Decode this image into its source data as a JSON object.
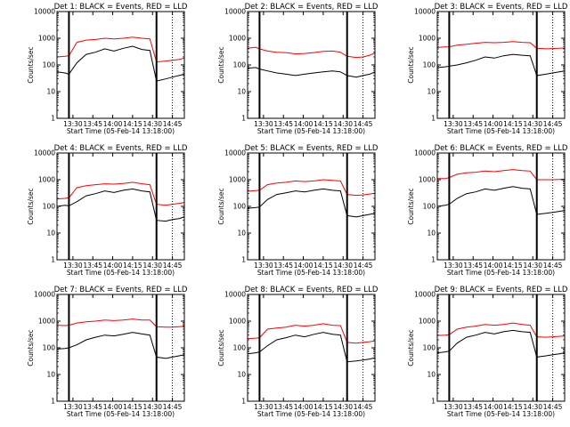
{
  "figure": {
    "xlabel": "Start Time (05-Feb-14 13:18:00)",
    "ylabel": "Counts/sec",
    "x_tick_labels": [
      "13:30",
      "13:45",
      "14:00",
      "14:15",
      "14:30",
      "14:45"
    ],
    "y_tick_labels": [
      "1",
      "10",
      "100",
      "1000",
      "10000"
    ],
    "colors": {
      "events": "#000000",
      "lld": "#ff0000",
      "marker": "#000000"
    }
  },
  "chart_data": [
    {
      "type": "line",
      "title": "Det 1: BLACK = Events, RED = LLD",
      "x_range": [
        "13:18",
        "14:54"
      ],
      "ylim": [
        1,
        10000
      ],
      "y_scale": "log",
      "x_markers": [
        "13:27",
        "14:33"
      ],
      "grid": false,
      "series": [
        {
          "x": [
            "13:18",
            "13:24",
            "13:27",
            "13:33",
            "13:40",
            "13:47",
            "13:54",
            "14:01",
            "14:08",
            "14:15",
            "14:22",
            "14:28",
            "14:33",
            "14:40",
            "14:45",
            "14:50",
            "14:54"
          ],
          "values": [
            200,
            210,
            220,
            700,
            850,
            900,
            1000,
            950,
            1000,
            1100,
            1000,
            950,
            130,
            140,
            150,
            160,
            180
          ]
        },
        {
          "x": [
            "13:18",
            "13:24",
            "13:27",
            "13:33",
            "13:40",
            "13:47",
            "13:54",
            "14:01",
            "14:08",
            "14:15",
            "14:22",
            "14:28",
            "14:33",
            "14:40",
            "14:45",
            "14:50",
            "14:54"
          ],
          "values": [
            55,
            50,
            45,
            120,
            250,
            300,
            400,
            330,
            420,
            500,
            380,
            350,
            25,
            30,
            35,
            40,
            45
          ]
        }
      ]
    },
    {
      "type": "line",
      "title": "Det 2: BLACK = Events, RED = LLD",
      "x_range": [
        "13:18",
        "14:54"
      ],
      "ylim": [
        1,
        10000
      ],
      "y_scale": "log",
      "x_markers": [
        "13:27",
        "14:33"
      ],
      "grid": false,
      "series": [
        {
          "x": [
            "13:18",
            "13:24",
            "13:27",
            "13:33",
            "13:40",
            "13:47",
            "13:54",
            "14:01",
            "14:08",
            "14:15",
            "14:22",
            "14:28",
            "14:33",
            "14:40",
            "14:45",
            "14:50",
            "14:54"
          ],
          "values": [
            420,
            460,
            400,
            330,
            300,
            290,
            260,
            270,
            290,
            320,
            330,
            300,
            210,
            190,
            200,
            230,
            280
          ]
        },
        {
          "x": [
            "13:18",
            "13:24",
            "13:27",
            "13:33",
            "13:40",
            "13:47",
            "13:54",
            "14:01",
            "14:08",
            "14:15",
            "14:22",
            "14:28",
            "14:33",
            "14:40",
            "14:45",
            "14:50",
            "14:54"
          ],
          "values": [
            75,
            80,
            70,
            60,
            50,
            45,
            40,
            45,
            50,
            55,
            60,
            55,
            40,
            35,
            40,
            45,
            55
          ]
        }
      ]
    },
    {
      "type": "line",
      "title": "Det 3: BLACK = Events, RED = LLD",
      "x_range": [
        "13:18",
        "14:54"
      ],
      "ylim": [
        1,
        10000
      ],
      "y_scale": "log",
      "x_markers": [
        "13:27",
        "14:33"
      ],
      "grid": false,
      "series": [
        {
          "x": [
            "13:18",
            "13:24",
            "13:27",
            "13:33",
            "13:40",
            "13:47",
            "13:54",
            "14:01",
            "14:08",
            "14:15",
            "14:22",
            "14:28",
            "14:33",
            "14:40",
            "14:45",
            "14:50",
            "14:54"
          ],
          "values": [
            450,
            470,
            480,
            550,
            600,
            650,
            700,
            680,
            700,
            750,
            700,
            680,
            420,
            400,
            410,
            420,
            430
          ]
        },
        {
          "x": [
            "13:18",
            "13:24",
            "13:27",
            "13:33",
            "13:40",
            "13:47",
            "13:54",
            "14:01",
            "14:08",
            "14:15",
            "14:22",
            "14:28",
            "14:33",
            "14:40",
            "14:45",
            "14:50",
            "14:54"
          ],
          "values": [
            80,
            85,
            90,
            100,
            120,
            150,
            200,
            180,
            220,
            250,
            230,
            220,
            40,
            45,
            50,
            55,
            60
          ]
        }
      ]
    },
    {
      "type": "line",
      "title": "Det 4: BLACK = Events, RED = LLD",
      "x_range": [
        "13:18",
        "14:54"
      ],
      "ylim": [
        1,
        10000
      ],
      "y_scale": "log",
      "x_markers": [
        "13:27",
        "14:33"
      ],
      "grid": false,
      "series": [
        {
          "x": [
            "13:18",
            "13:24",
            "13:27",
            "13:33",
            "13:40",
            "13:47",
            "13:54",
            "14:01",
            "14:08",
            "14:15",
            "14:22",
            "14:28",
            "14:33",
            "14:40",
            "14:45",
            "14:50",
            "14:54"
          ],
          "values": [
            190,
            200,
            210,
            500,
            600,
            650,
            700,
            680,
            720,
            800,
            700,
            650,
            120,
            110,
            120,
            130,
            140
          ]
        },
        {
          "x": [
            "13:18",
            "13:24",
            "13:27",
            "13:33",
            "13:40",
            "13:47",
            "13:54",
            "14:01",
            "14:08",
            "14:15",
            "14:22",
            "14:28",
            "14:33",
            "14:40",
            "14:45",
            "14:50",
            "14:54"
          ],
          "values": [
            100,
            110,
            105,
            150,
            250,
            300,
            380,
            330,
            400,
            450,
            380,
            350,
            30,
            28,
            32,
            35,
            40
          ]
        }
      ]
    },
    {
      "type": "line",
      "title": "Det 5: BLACK = Events, RED = LLD",
      "x_range": [
        "13:18",
        "14:54"
      ],
      "ylim": [
        1,
        10000
      ],
      "y_scale": "log",
      "x_markers": [
        "13:27",
        "14:33"
      ],
      "grid": false,
      "series": [
        {
          "x": [
            "13:18",
            "13:24",
            "13:27",
            "13:33",
            "13:40",
            "13:47",
            "13:54",
            "14:01",
            "14:08",
            "14:15",
            "14:22",
            "14:28",
            "14:33",
            "14:40",
            "14:45",
            "14:50",
            "14:54"
          ],
          "values": [
            370,
            390,
            400,
            650,
            750,
            800,
            900,
            850,
            900,
            1000,
            950,
            900,
            280,
            260,
            270,
            290,
            310
          ]
        },
        {
          "x": [
            "13:18",
            "13:24",
            "13:27",
            "13:33",
            "13:40",
            "13:47",
            "13:54",
            "14:01",
            "14:08",
            "14:15",
            "14:22",
            "14:28",
            "14:33",
            "14:40",
            "14:45",
            "14:50",
            "14:54"
          ],
          "values": [
            85,
            90,
            95,
            180,
            280,
            320,
            380,
            350,
            400,
            450,
            400,
            380,
            45,
            40,
            45,
            50,
            55
          ]
        }
      ]
    },
    {
      "type": "line",
      "title": "Det 6: BLACK = Events, RED = LLD",
      "x_range": [
        "13:18",
        "14:54"
      ],
      "ylim": [
        1,
        10000
      ],
      "y_scale": "log",
      "x_markers": [
        "13:27",
        "14:33"
      ],
      "grid": false,
      "series": [
        {
          "x": [
            "13:18",
            "13:24",
            "13:27",
            "13:33",
            "13:40",
            "13:47",
            "13:54",
            "14:01",
            "14:08",
            "14:15",
            "14:22",
            "14:28",
            "14:33",
            "14:40",
            "14:45",
            "14:50",
            "14:54"
          ],
          "values": [
            1100,
            1100,
            1200,
            1600,
            1800,
            1900,
            2100,
            2000,
            2200,
            2400,
            2200,
            2100,
            1000,
            1000,
            1000,
            1020,
            1050
          ]
        },
        {
          "x": [
            "13:18",
            "13:24",
            "13:27",
            "13:33",
            "13:40",
            "13:47",
            "13:54",
            "14:01",
            "14:08",
            "14:15",
            "14:22",
            "14:28",
            "14:33",
            "14:40",
            "14:45",
            "14:50",
            "14:54"
          ],
          "values": [
            100,
            110,
            120,
            200,
            300,
            350,
            450,
            400,
            480,
            550,
            480,
            450,
            50,
            55,
            60,
            65,
            70
          ]
        }
      ]
    },
    {
      "type": "line",
      "title": "Det 7: BLACK = Events, RED = LLD",
      "x_range": [
        "13:18",
        "14:54"
      ],
      "ylim": [
        1,
        10000
      ],
      "y_scale": "log",
      "x_markers": [
        "13:27",
        "14:33"
      ],
      "grid": false,
      "series": [
        {
          "x": [
            "13:18",
            "13:24",
            "13:27",
            "13:33",
            "13:40",
            "13:47",
            "13:54",
            "14:01",
            "14:08",
            "14:15",
            "14:22",
            "14:28",
            "14:33",
            "14:40",
            "14:45",
            "14:50",
            "14:54"
          ],
          "values": [
            700,
            680,
            700,
            850,
            950,
            1000,
            1100,
            1050,
            1100,
            1200,
            1100,
            1100,
            620,
            600,
            600,
            620,
            640
          ]
        },
        {
          "x": [
            "13:18",
            "13:24",
            "13:27",
            "13:33",
            "13:40",
            "13:47",
            "13:54",
            "14:01",
            "14:08",
            "14:15",
            "14:22",
            "14:28",
            "14:33",
            "14:40",
            "14:45",
            "14:50",
            "14:54"
          ],
          "values": [
            90,
            95,
            100,
            130,
            200,
            250,
            300,
            280,
            320,
            380,
            330,
            300,
            45,
            40,
            45,
            50,
            55
          ]
        }
      ]
    },
    {
      "type": "line",
      "title": "Det 8: BLACK = Events, RED = LLD",
      "x_range": [
        "13:18",
        "14:54"
      ],
      "ylim": [
        1,
        10000
      ],
      "y_scale": "log",
      "x_markers": [
        "13:27",
        "14:33"
      ],
      "grid": false,
      "series": [
        {
          "x": [
            "13:18",
            "13:24",
            "13:27",
            "13:33",
            "13:40",
            "13:47",
            "13:54",
            "14:01",
            "14:08",
            "14:15",
            "14:22",
            "14:28",
            "14:33",
            "14:40",
            "14:45",
            "14:50",
            "14:54"
          ],
          "values": [
            220,
            230,
            240,
            500,
            550,
            600,
            700,
            650,
            700,
            800,
            700,
            680,
            160,
            150,
            160,
            170,
            180
          ]
        },
        {
          "x": [
            "13:18",
            "13:24",
            "13:27",
            "13:33",
            "13:40",
            "13:47",
            "13:54",
            "14:01",
            "14:08",
            "14:15",
            "14:22",
            "14:28",
            "14:33",
            "14:40",
            "14:45",
            "14:50",
            "14:54"
          ],
          "values": [
            60,
            65,
            70,
            120,
            200,
            240,
            300,
            260,
            320,
            380,
            320,
            300,
            30,
            32,
            35,
            38,
            42
          ]
        }
      ]
    },
    {
      "type": "line",
      "title": "Det 9: BLACK = Events, RED = LLD",
      "x_range": [
        "13:18",
        "14:54"
      ],
      "ylim": [
        1,
        10000
      ],
      "y_scale": "log",
      "x_markers": [
        "13:27",
        "14:33"
      ],
      "grid": false,
      "series": [
        {
          "x": [
            "13:18",
            "13:24",
            "13:27",
            "13:33",
            "13:40",
            "13:47",
            "13:54",
            "14:01",
            "14:08",
            "14:15",
            "14:22",
            "14:28",
            "14:33",
            "14:40",
            "14:45",
            "14:50",
            "14:54"
          ],
          "values": [
            290,
            300,
            310,
            500,
            600,
            650,
            750,
            700,
            750,
            850,
            750,
            700,
            260,
            250,
            260,
            270,
            280
          ]
        },
        {
          "x": [
            "13:18",
            "13:24",
            "13:27",
            "13:33",
            "13:40",
            "13:47",
            "13:54",
            "14:01",
            "14:08",
            "14:15",
            "14:22",
            "14:28",
            "14:33",
            "14:40",
            "14:45",
            "14:50",
            "14:54"
          ],
          "values": [
            65,
            70,
            75,
            150,
            250,
            300,
            380,
            330,
            400,
            450,
            400,
            380,
            45,
            50,
            55,
            60,
            65
          ]
        }
      ]
    }
  ]
}
